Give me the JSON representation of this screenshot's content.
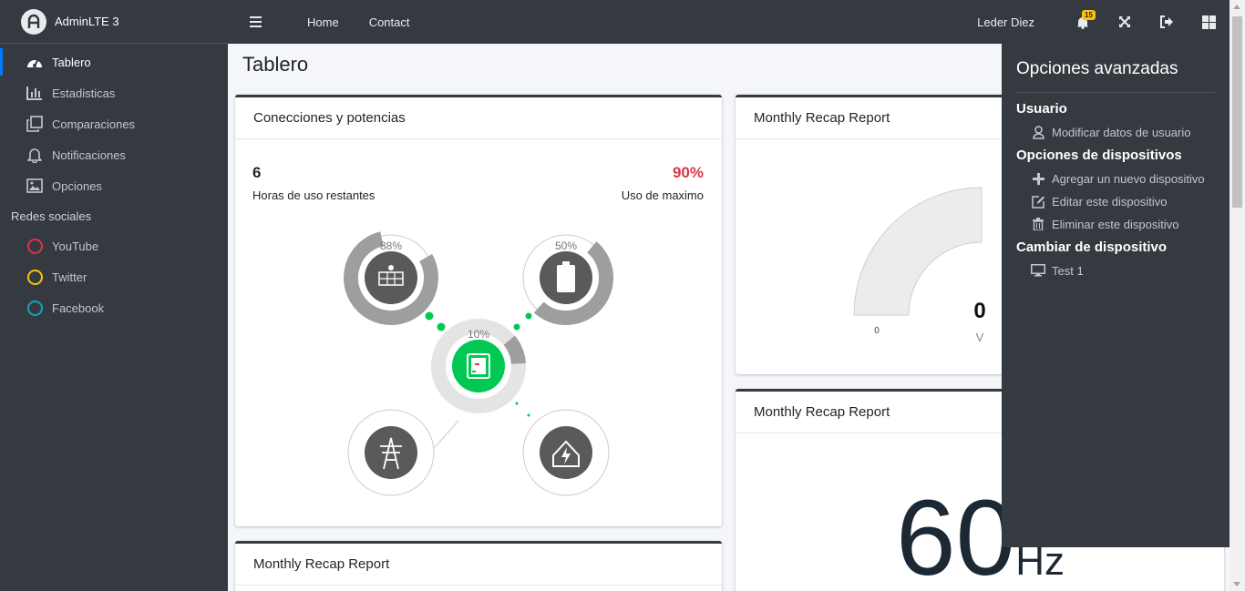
{
  "brand": {
    "name": "AdminLTE 3"
  },
  "sidebar": {
    "items": [
      {
        "label": "Tablero",
        "icon": "dashboard-icon"
      },
      {
        "label": "Estadisticas",
        "icon": "chart-icon"
      },
      {
        "label": "Comparaciones",
        "icon": "copy-icon"
      },
      {
        "label": "Notificaciones",
        "icon": "bell-icon"
      },
      {
        "label": "Opciones",
        "icon": "image-icon"
      }
    ],
    "social_header": "Redes sociales",
    "social": [
      {
        "label": "YouTube",
        "color": "#dc3545"
      },
      {
        "label": "Twitter",
        "color": "#ffc107"
      },
      {
        "label": "Facebook",
        "color": "#17a2b8"
      }
    ]
  },
  "topbar": {
    "links": [
      "Home",
      "Contact"
    ],
    "username": "Leder Diez",
    "notifications_count": "15"
  },
  "page": {
    "title": "Tablero"
  },
  "card_connections": {
    "title": "Conecciones y potencias",
    "hours_value": "6",
    "hours_label": "Horas de uso restantes",
    "usage_value": "90%",
    "usage_label": "Uso de maximo",
    "solar_pct": "88%",
    "battery_pct": "50%",
    "inverter_pct": "10%",
    "accent": "#00c853",
    "danger": "#dc3545"
  },
  "card_recap1": {
    "title": "Monthly Recap Report",
    "gauge_min": "0",
    "gauge_value": "0",
    "gauge_unit": "V"
  },
  "card_recap2": {
    "title": "Monthly Recap Report",
    "big_value": "60",
    "big_unit": "Hz"
  },
  "card_recap3": {
    "title": "Monthly Recap Report"
  },
  "control_sidebar": {
    "title": "Opciones avanzadas",
    "sections": {
      "user": "Usuario",
      "user_edit": "Modificar datos de usuario",
      "devices": "Opciones de dispositivos",
      "add_device": "Agregar un nuevo dispositivo",
      "edit_device": "Editar este dispositivo",
      "delete_device": "Eliminar este dispositivo",
      "change": "Cambiar de dispositivo",
      "device_name": "Test 1"
    }
  }
}
